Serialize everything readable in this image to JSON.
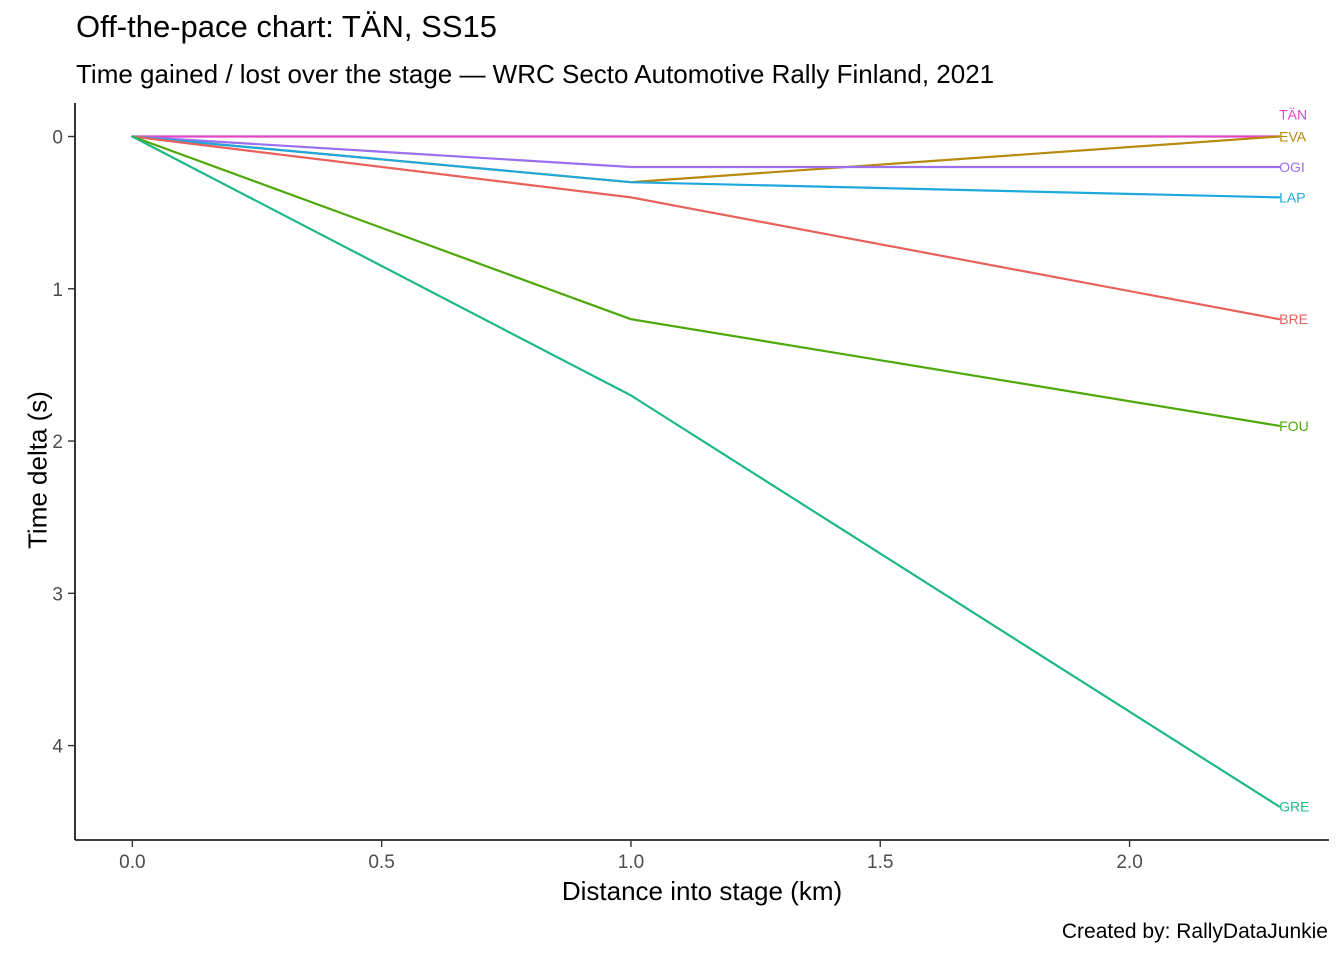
{
  "title": "Off-the-pace chart: TÄN, SS15",
  "subtitle": "Time gained / lost over the stage — WRC Secto Automotive Rally Finland, 2021",
  "caption": "Created by: RallyDataJunkie",
  "chart_data": {
    "type": "line",
    "title": "Off-the-pace chart: TÄN, SS15",
    "subtitle": "Time gained / lost over the stage — WRC Secto Automotive Rally Finland, 2021",
    "xlabel": "Distance into stage (km)",
    "ylabel": "Time delta (s)",
    "xlim": [
      -0.115,
      2.4
    ],
    "ylim": [
      -0.22,
      4.62
    ],
    "y_reversed": true,
    "grid": false,
    "legend": "none (direct end labels)",
    "x_ticks": [
      0.0,
      0.5,
      1.0,
      1.5,
      2.0
    ],
    "x_tick_labels": [
      "0.0",
      "0.5",
      "1.0",
      "1.5",
      "2.0"
    ],
    "y_ticks": [
      0,
      1,
      2,
      3,
      4
    ],
    "y_tick_labels": [
      "0",
      "1",
      "2",
      "3",
      "4"
    ],
    "series": [
      {
        "name": "TÄN",
        "color": "#E844C8",
        "x": [
          0,
          1.0,
          2.3
        ],
        "y": [
          0,
          0,
          0
        ],
        "label_above": true
      },
      {
        "name": "EVA",
        "color": "#B58A0D",
        "x": [
          0,
          1.0,
          2.3
        ],
        "y": [
          0,
          0.3,
          0
        ]
      },
      {
        "name": "OGI",
        "color": "#9A70F0",
        "x": [
          0,
          1.0,
          2.3
        ],
        "y": [
          0,
          0.2,
          0.2
        ]
      },
      {
        "name": "LAP",
        "color": "#1FA8DD",
        "x": [
          0,
          1.0,
          2.3
        ],
        "y": [
          0,
          0.3,
          0.4
        ]
      },
      {
        "name": "BRE",
        "color": "#E8615C",
        "x": [
          0,
          1.0,
          2.3
        ],
        "y": [
          0,
          0.4,
          1.2
        ]
      },
      {
        "name": "FOU",
        "color": "#4FA80A",
        "x": [
          0,
          1.0,
          2.3
        ],
        "y": [
          0,
          1.2,
          1.9
        ]
      },
      {
        "name": "GRE",
        "color": "#1EB887",
        "x": [
          0,
          1.0,
          2.3
        ],
        "y": [
          0,
          1.7,
          4.4
        ]
      }
    ]
  }
}
